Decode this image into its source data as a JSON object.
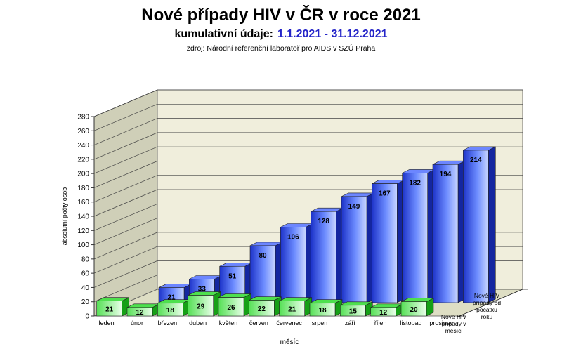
{
  "title": "Nové případy HIV v ČR v roce 2021",
  "subtitle_label": "kumulativní údaje:",
  "subtitle_range": "1.1.2021 - 31.12.2021",
  "source": "zdroj:  Národní  referenční  laboratoř  pro AIDS v SZÚ  Praha",
  "colors": {
    "cumulative": "#3a5bf0",
    "monthly": "#22c822",
    "wall": "#f0eedc",
    "floor": "#ddddc0"
  },
  "chart_data": {
    "type": "bar",
    "categories": [
      "leden",
      "únor",
      "březen",
      "duben",
      "květen",
      "červen",
      "červenec",
      "srpen",
      "září",
      "říjen",
      "listopad",
      "prosinec"
    ],
    "series": [
      {
        "name": "Nové HIV případy od počátku roku",
        "values": [
          null,
          21,
          33,
          51,
          80,
          106,
          128,
          149,
          167,
          182,
          194,
          214
        ]
      },
      {
        "name": "Nové HIV případy v měsíci",
        "values": [
          21,
          12,
          18,
          29,
          26,
          22,
          21,
          18,
          15,
          12,
          20,
          null
        ]
      }
    ],
    "xlabel": "měsíc",
    "ylabel": "absolutní počty osob",
    "ylim": [
      0,
      280
    ],
    "yticks": [
      0,
      20,
      40,
      60,
      80,
      100,
      120,
      140,
      160,
      180,
      200,
      220,
      240,
      260,
      280
    ],
    "grid": true,
    "legend_lines": {
      "cumulative": [
        "Nové HIV",
        "případy od",
        "počátku",
        "roku"
      ],
      "monthly": [
        "Nové HIV",
        "případy v",
        "měsíci"
      ]
    }
  }
}
